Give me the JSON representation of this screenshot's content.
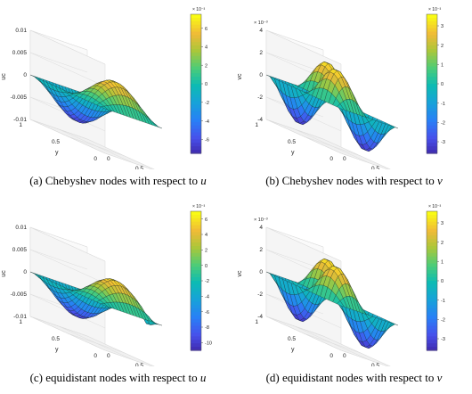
{
  "figures": [
    {
      "caption_prefix": "(a)",
      "caption_text": "Chebyshev nodes with respect to",
      "caption_var": "u",
      "chart_data": {
        "type": "surface",
        "xlabel": "x",
        "ylabel": "y",
        "zlabel": "uc",
        "xlim": [
          0,
          1
        ],
        "ylim": [
          0,
          1
        ],
        "zlim": [
          -0.01,
          0.01
        ],
        "xticks": [
          "0",
          "0.5",
          "1"
        ],
        "yticks": [
          "0",
          "0.5",
          "1"
        ],
        "zticks": [
          "-0.01",
          "-0.005",
          "0",
          "0.005",
          "0.01"
        ],
        "z_ticks_values": [
          -0.01,
          -0.005,
          0,
          0.005,
          0.01
        ],
        "colorbar_ticks": [
          "6",
          "4",
          "2",
          "0",
          "-2",
          "-4",
          "-6"
        ],
        "colorbar_values": [
          6,
          4,
          2,
          0,
          -2,
          -4,
          -6
        ],
        "colorbar_range": [
          -7.5,
          7.5
        ],
        "colorbar_exponent": "× 10⁻³",
        "colormap": "parula",
        "surface_function": "u",
        "z_amplitude": 0.0072
      }
    },
    {
      "caption_prefix": "(b)",
      "caption_text": "Chebyshev nodes with respect to",
      "caption_var": "v",
      "chart_data": {
        "type": "surface",
        "xlabel": "x",
        "ylabel": "y",
        "zlabel": "vc",
        "xlim": [
          0,
          1
        ],
        "ylim": [
          0,
          1
        ],
        "zlim": [
          -0.004,
          0.004
        ],
        "xticks": [
          "0",
          "0.5",
          "1"
        ],
        "yticks": [
          "0",
          "0.5",
          "1"
        ],
        "zticks": [
          "-4",
          "-2",
          "0",
          "2",
          "4"
        ],
        "z_ticks_values": [
          -0.004,
          -0.002,
          0,
          0.002,
          0.004
        ],
        "z_exponent": "× 10⁻³",
        "colorbar_ticks": [
          "3",
          "2",
          "1",
          "0",
          "-1",
          "-2",
          "-3"
        ],
        "colorbar_values": [
          3,
          2,
          1,
          0,
          -1,
          -2,
          -3
        ],
        "colorbar_range": [
          -3.6,
          3.6
        ],
        "colorbar_exponent": "× 10⁻³",
        "colormap": "parula",
        "surface_function": "v",
        "z_amplitude": 0.0034
      }
    },
    {
      "caption_prefix": "(c)",
      "caption_text": "equidistant nodes with respect to",
      "caption_var": "u",
      "chart_data": {
        "type": "surface",
        "xlabel": "x",
        "ylabel": "y",
        "zlabel": "uc",
        "xlim": [
          0,
          1
        ],
        "ylim": [
          0,
          1
        ],
        "zlim": [
          -0.01,
          0.01
        ],
        "xticks": [
          "0",
          "0.5",
          "1"
        ],
        "yticks": [
          "0",
          "0.5",
          "1"
        ],
        "zticks": [
          "-0.01",
          "-0.005",
          "0",
          "0.005",
          "0.01"
        ],
        "z_ticks_values": [
          -0.01,
          -0.005,
          0,
          0.005,
          0.01
        ],
        "colorbar_ticks": [
          "6",
          "4",
          "2",
          "0",
          "-2",
          "-4",
          "-6",
          "-8",
          "-10"
        ],
        "colorbar_values": [
          6,
          4,
          2,
          0,
          -2,
          -4,
          -6,
          -8,
          -10
        ],
        "colorbar_range": [
          -11,
          7
        ],
        "colorbar_exponent": "× 10⁻³",
        "colormap": "parula",
        "surface_function": "u_equi",
        "z_amplitude": 0.0068
      }
    },
    {
      "caption_prefix": "(d)",
      "caption_text": "equidistant nodes with respect to",
      "caption_var": "v",
      "chart_data": {
        "type": "surface",
        "xlabel": "x",
        "ylabel": "y",
        "zlabel": "vc",
        "xlim": [
          0,
          1
        ],
        "ylim": [
          0,
          1
        ],
        "zlim": [
          -0.004,
          0.004
        ],
        "xticks": [
          "0",
          "0.5",
          "1"
        ],
        "yticks": [
          "0",
          "0.5",
          "1"
        ],
        "zticks": [
          "-4",
          "-2",
          "0",
          "2",
          "4"
        ],
        "z_ticks_values": [
          -0.004,
          -0.002,
          0,
          0.002,
          0.004
        ],
        "z_exponent": "× 10⁻³",
        "colorbar_ticks": [
          "3",
          "2",
          "1",
          "0",
          "-1",
          "-2",
          "-3"
        ],
        "colorbar_values": [
          3,
          2,
          1,
          0,
          -1,
          -2,
          -3
        ],
        "colorbar_range": [
          -3.6,
          3.6
        ],
        "colorbar_exponent": "× 10⁻³",
        "colormap": "parula",
        "surface_function": "v",
        "z_amplitude": 0.0034
      }
    }
  ]
}
